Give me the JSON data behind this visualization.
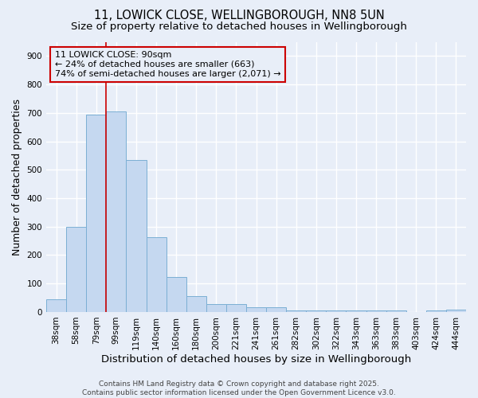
{
  "title_line1": "11, LOWICK CLOSE, WELLINGBOROUGH, NN8 5UN",
  "title_line2": "Size of property relative to detached houses in Wellingborough",
  "xlabel": "Distribution of detached houses by size in Wellingborough",
  "ylabel": "Number of detached properties",
  "categories": [
    "38sqm",
    "58sqm",
    "79sqm",
    "99sqm",
    "119sqm",
    "140sqm",
    "160sqm",
    "180sqm",
    "200sqm",
    "221sqm",
    "241sqm",
    "261sqm",
    "282sqm",
    "302sqm",
    "322sqm",
    "343sqm",
    "363sqm",
    "383sqm",
    "403sqm",
    "424sqm",
    "444sqm"
  ],
  "values": [
    45,
    300,
    695,
    705,
    535,
    262,
    122,
    55,
    27,
    27,
    18,
    18,
    5,
    5,
    5,
    5,
    5,
    5,
    1,
    5,
    8
  ],
  "bar_color": "#c5d8f0",
  "bar_edge_color": "#7bafd4",
  "vline_x": 2.5,
  "vline_color": "#cc0000",
  "annotation_box_text": "11 LOWICK CLOSE: 90sqm\n← 24% of detached houses are smaller (663)\n74% of semi-detached houses are larger (2,071) →",
  "annotation_box_color": "#cc0000",
  "footer_line1": "Contains HM Land Registry data © Crown copyright and database right 2025.",
  "footer_line2": "Contains public sector information licensed under the Open Government Licence v3.0.",
  "ylim": [
    0,
    950
  ],
  "yticks": [
    0,
    100,
    200,
    300,
    400,
    500,
    600,
    700,
    800,
    900
  ],
  "background_color": "#e8eef8",
  "grid_color": "#ffffff",
  "title_fontsize": 10.5,
  "subtitle_fontsize": 9.5,
  "axis_label_fontsize": 9,
  "tick_fontsize": 7.5,
  "annotation_fontsize": 8,
  "footer_fontsize": 6.5
}
